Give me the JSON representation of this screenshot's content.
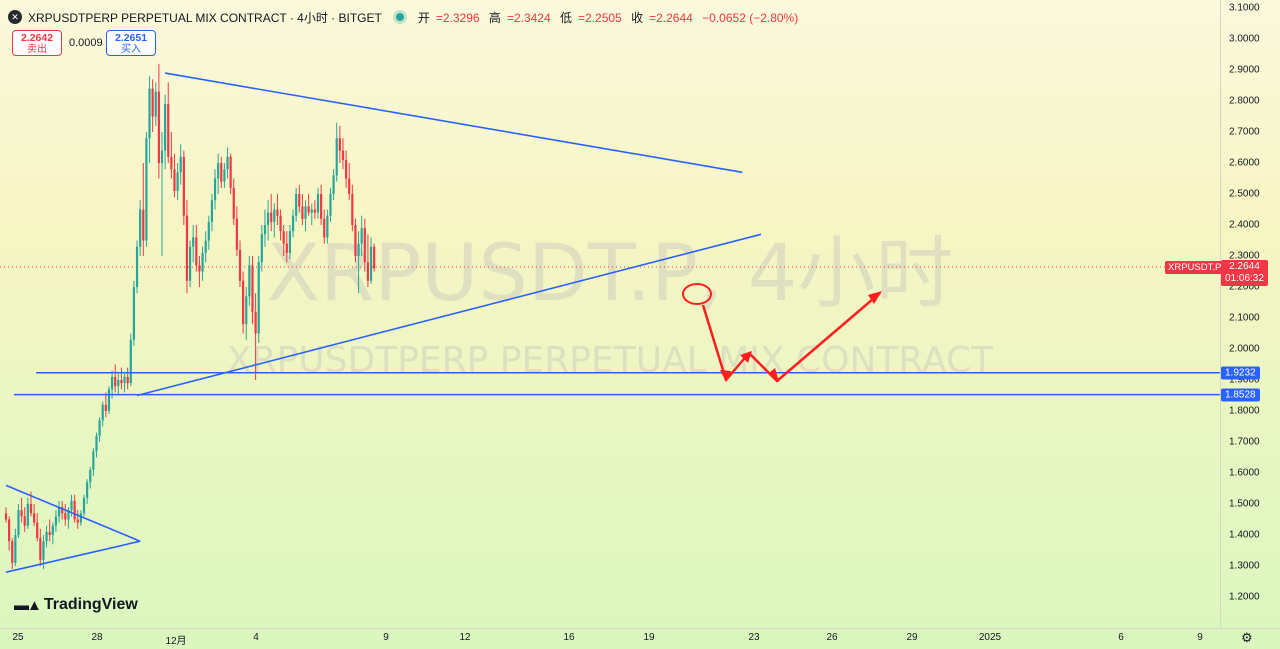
{
  "header": {
    "symbol_line": "XRPUSDTPERP PERPETUAL MIX CONTRACT · 4小时 · BITGET",
    "ohlc": {
      "open_label": "开",
      "open": "=2.3296",
      "high_label": "高",
      "high": "=2.3424",
      "low_label": "低",
      "low": "=2.2505",
      "close_label": "收",
      "close": "=2.2644",
      "change": "−0.0652 (−2.80%)"
    }
  },
  "quotes": {
    "sell_price": "2.2642",
    "sell_label": "卖出",
    "spread": "0.0009",
    "buy_price": "2.2651",
    "buy_label": "买入"
  },
  "watermark": {
    "big": "XRPUSDT.P, 4小时",
    "small": "XRPUSDTPERP PERPETUAL MIX CONTRACT"
  },
  "price_axis": {
    "ticks": [
      "3.1000",
      "3.0000",
      "2.9000",
      "2.8000",
      "2.7000",
      "2.6000",
      "2.5000",
      "2.4000",
      "2.3000",
      "2.2000",
      "2.1000",
      "2.0000",
      "1.9000",
      "1.8000",
      "1.7000",
      "1.6000",
      "1.5000",
      "1.4000",
      "1.3000",
      "1.2000"
    ],
    "current_symbol": "XRPUSDT.P",
    "current_price": "2.2644",
    "countdown": "01:06:32",
    "level_1": "1.9232",
    "level_2": "1.8528"
  },
  "time_axis": {
    "ticks": [
      "25",
      "28",
      "12月",
      "4",
      "9",
      "12",
      "16",
      "19",
      "23",
      "26",
      "29",
      "2025",
      "6",
      "9"
    ]
  },
  "branding": {
    "logo_text": "TradingView"
  },
  "colors": {
    "up": "#26a69a",
    "down": "#f23645",
    "trendline": "#2962ff",
    "annotation": "#ff1e1e"
  },
  "chart_data": {
    "type": "candlestick",
    "interval": "4h",
    "ylim": [
      1.17,
      3.12
    ],
    "price_tick_values": [
      3.1,
      3.0,
      2.9,
      2.8,
      2.7,
      2.6,
      2.5,
      2.4,
      2.3,
      2.2,
      2.1,
      2.0,
      1.9,
      1.8,
      1.7,
      1.6,
      1.5,
      1.4,
      1.3,
      1.2
    ],
    "horizontal_levels": [
      1.9232,
      1.8528
    ],
    "current_price": 2.2644,
    "candles": [
      [
        1.47,
        1.49,
        1.44,
        1.45
      ],
      [
        1.45,
        1.46,
        1.35,
        1.38
      ],
      [
        1.38,
        1.39,
        1.29,
        1.31
      ],
      [
        1.31,
        1.42,
        1.3,
        1.4
      ],
      [
        1.4,
        1.5,
        1.39,
        1.48
      ],
      [
        1.48,
        1.52,
        1.44,
        1.46
      ],
      [
        1.46,
        1.49,
        1.41,
        1.43
      ],
      [
        1.43,
        1.52,
        1.42,
        1.5
      ],
      [
        1.5,
        1.54,
        1.46,
        1.47
      ],
      [
        1.47,
        1.5,
        1.43,
        1.44
      ],
      [
        1.44,
        1.47,
        1.38,
        1.39
      ],
      [
        1.39,
        1.42,
        1.3,
        1.32
      ],
      [
        1.32,
        1.4,
        1.29,
        1.38
      ],
      [
        1.38,
        1.43,
        1.36,
        1.41
      ],
      [
        1.41,
        1.45,
        1.38,
        1.4
      ],
      [
        1.4,
        1.44,
        1.37,
        1.43
      ],
      [
        1.43,
        1.48,
        1.41,
        1.46
      ],
      [
        1.46,
        1.51,
        1.44,
        1.49
      ],
      [
        1.49,
        1.51,
        1.45,
        1.47
      ],
      [
        1.47,
        1.5,
        1.43,
        1.45
      ],
      [
        1.45,
        1.49,
        1.42,
        1.48
      ],
      [
        1.48,
        1.53,
        1.46,
        1.51
      ],
      [
        1.51,
        1.53,
        1.44,
        1.45
      ],
      [
        1.45,
        1.48,
        1.42,
        1.44
      ],
      [
        1.44,
        1.48,
        1.43,
        1.47
      ],
      [
        1.47,
        1.53,
        1.46,
        1.52
      ],
      [
        1.52,
        1.58,
        1.5,
        1.57
      ],
      [
        1.57,
        1.62,
        1.55,
        1.61
      ],
      [
        1.61,
        1.68,
        1.59,
        1.67
      ],
      [
        1.67,
        1.73,
        1.65,
        1.72
      ],
      [
        1.72,
        1.78,
        1.7,
        1.77
      ],
      [
        1.77,
        1.83,
        1.75,
        1.82
      ],
      [
        1.82,
        1.86,
        1.78,
        1.8
      ],
      [
        1.8,
        1.88,
        1.79,
        1.87
      ],
      [
        1.87,
        1.93,
        1.84,
        1.91
      ],
      [
        1.91,
        1.95,
        1.86,
        1.88
      ],
      [
        1.88,
        1.92,
        1.85,
        1.9
      ],
      [
        1.9,
        1.94,
        1.87,
        1.89
      ],
      [
        1.89,
        1.92,
        1.86,
        1.91
      ],
      [
        1.91,
        1.94,
        1.87,
        1.89
      ],
      [
        1.89,
        2.05,
        1.88,
        2.03
      ],
      [
        2.03,
        2.22,
        2.01,
        2.2
      ],
      [
        2.2,
        2.35,
        2.18,
        2.33
      ],
      [
        2.33,
        2.48,
        2.3,
        2.45
      ],
      [
        2.45,
        2.6,
        2.3,
        2.35
      ],
      [
        2.35,
        2.7,
        2.33,
        2.68
      ],
      [
        2.68,
        2.88,
        2.6,
        2.84
      ],
      [
        2.84,
        2.87,
        2.7,
        2.75
      ],
      [
        2.75,
        2.86,
        2.72,
        2.83
      ],
      [
        2.83,
        2.92,
        2.55,
        2.6
      ],
      [
        2.6,
        2.7,
        2.3,
        2.64
      ],
      [
        2.64,
        2.82,
        2.58,
        2.79
      ],
      [
        2.79,
        2.86,
        2.6,
        2.62
      ],
      [
        2.62,
        2.7,
        2.55,
        2.58
      ],
      [
        2.58,
        2.63,
        2.49,
        2.51
      ],
      [
        2.51,
        2.6,
        2.48,
        2.57
      ],
      [
        2.57,
        2.66,
        2.53,
        2.62
      ],
      [
        2.62,
        2.64,
        2.4,
        2.43
      ],
      [
        2.43,
        2.48,
        2.18,
        2.22
      ],
      [
        2.22,
        2.35,
        2.2,
        2.33
      ],
      [
        2.33,
        2.4,
        2.28,
        2.36
      ],
      [
        2.36,
        2.4,
        2.25,
        2.27
      ],
      [
        2.27,
        2.3,
        2.2,
        2.25
      ],
      [
        2.25,
        2.33,
        2.22,
        2.31
      ],
      [
        2.31,
        2.38,
        2.28,
        2.35
      ],
      [
        2.35,
        2.43,
        2.32,
        2.41
      ],
      [
        2.41,
        2.5,
        2.38,
        2.48
      ],
      [
        2.48,
        2.58,
        2.45,
        2.55
      ],
      [
        2.55,
        2.63,
        2.5,
        2.6
      ],
      [
        2.6,
        2.62,
        2.52,
        2.54
      ],
      [
        2.54,
        2.6,
        2.52,
        2.58
      ],
      [
        2.58,
        2.65,
        2.55,
        2.62
      ],
      [
        2.62,
        2.63,
        2.5,
        2.52
      ],
      [
        2.52,
        2.55,
        2.4,
        2.42
      ],
      [
        2.42,
        2.46,
        2.3,
        2.32
      ],
      [
        2.32,
        2.35,
        2.2,
        2.22
      ],
      [
        2.22,
        2.25,
        2.05,
        2.08
      ],
      [
        2.08,
        2.2,
        2.03,
        2.17
      ],
      [
        2.17,
        2.3,
        2.14,
        2.27
      ],
      [
        2.27,
        2.3,
        2.08,
        2.12
      ],
      [
        2.12,
        2.18,
        1.9,
        2.05
      ],
      [
        2.05,
        2.3,
        2.02,
        2.28
      ],
      [
        2.28,
        2.4,
        2.25,
        2.37
      ],
      [
        2.37,
        2.45,
        2.33,
        2.4
      ],
      [
        2.4,
        2.48,
        2.35,
        2.44
      ],
      [
        2.44,
        2.5,
        2.38,
        2.41
      ],
      [
        2.41,
        2.47,
        2.36,
        2.45
      ],
      [
        2.45,
        2.5,
        2.4,
        2.43
      ],
      [
        2.43,
        2.45,
        2.35,
        2.38
      ],
      [
        2.38,
        2.4,
        2.3,
        2.34
      ],
      [
        2.34,
        2.38,
        2.28,
        2.31
      ],
      [
        2.31,
        2.4,
        2.29,
        2.38
      ],
      [
        2.38,
        2.45,
        2.36,
        2.43
      ],
      [
        2.43,
        2.52,
        2.41,
        2.5
      ],
      [
        2.5,
        2.53,
        2.44,
        2.46
      ],
      [
        2.46,
        2.5,
        2.4,
        2.42
      ],
      [
        2.42,
        2.48,
        2.38,
        2.46
      ],
      [
        2.46,
        2.5,
        2.43,
        2.44
      ],
      [
        2.44,
        2.47,
        2.4,
        2.45
      ],
      [
        2.45,
        2.48,
        2.42,
        2.44
      ],
      [
        2.44,
        2.52,
        2.42,
        2.5
      ],
      [
        2.5,
        2.53,
        2.4,
        2.42
      ],
      [
        2.42,
        2.45,
        2.34,
        2.36
      ],
      [
        2.36,
        2.45,
        2.34,
        2.43
      ],
      [
        2.43,
        2.52,
        2.41,
        2.5
      ],
      [
        2.5,
        2.58,
        2.48,
        2.56
      ],
      [
        2.56,
        2.73,
        2.54,
        2.68
      ],
      [
        2.68,
        2.72,
        2.6,
        2.64
      ],
      [
        2.64,
        2.68,
        2.58,
        2.61
      ],
      [
        2.61,
        2.64,
        2.52,
        2.55
      ],
      [
        2.55,
        2.6,
        2.48,
        2.5
      ],
      [
        2.5,
        2.53,
        2.38,
        2.4
      ],
      [
        2.4,
        2.42,
        2.28,
        2.3
      ],
      [
        2.3,
        2.38,
        2.18,
        2.34
      ],
      [
        2.34,
        2.43,
        2.3,
        2.39
      ],
      [
        2.39,
        2.42,
        2.25,
        2.28
      ],
      [
        2.28,
        2.37,
        2.2,
        2.22
      ],
      [
        2.22,
        2.36,
        2.21,
        2.33
      ],
      [
        2.33,
        2.34,
        2.25,
        2.26
      ]
    ],
    "trendlines": [
      {
        "from": {
          "bar": 51,
          "price": 2.89
        },
        "to": {
          "bar": 236,
          "price": 2.57
        }
      },
      {
        "from": {
          "bar": 42,
          "price": 1.85
        },
        "to": {
          "bar": 242,
          "price": 2.37
        }
      },
      {
        "from": {
          "bar": 0,
          "price": 1.56
        },
        "to": {
          "bar": 43,
          "price": 1.38
        }
      },
      {
        "from": {
          "bar": 0,
          "price": 1.28
        },
        "to": {
          "bar": 43,
          "price": 1.38
        }
      }
    ]
  }
}
